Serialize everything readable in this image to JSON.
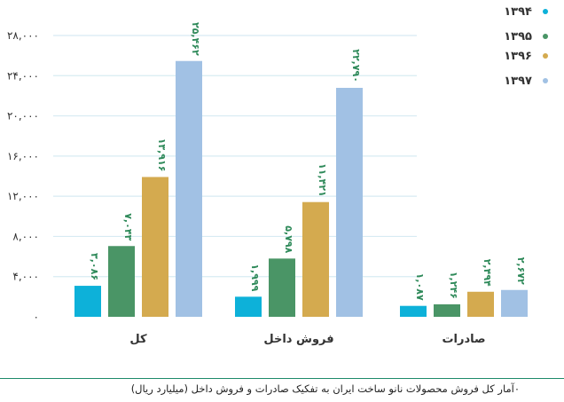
{
  "chart_data": {
    "type": "bar",
    "categories": [
      "کل",
      "فروش داخل",
      "صادرات"
    ],
    "series": [
      {
        "name": "۱۳۹۴",
        "color": "#0db1d9",
        "values": [
          3086,
          1999,
          1087
        ],
        "labels": [
          "۳,۰۸۶",
          "۱,۹۹۹",
          "۱,۰۸۷"
        ]
      },
      {
        "name": "۱۳۹۵",
        "color": "#4a9566",
        "values": [
          7043,
          5798,
          1246
        ],
        "labels": [
          "۷,۰۴۳",
          "۵,۷۹۸",
          "۱,۲۴۶"
        ]
      },
      {
        "name": "۱۳۹۶",
        "color": "#d4aa4f",
        "values": [
          13916,
          11421,
          2494
        ],
        "labels": [
          "۱۳,۹۱۶",
          "۱۱,۴۲۱",
          "۲,۴۹۴"
        ]
      },
      {
        "name": "۱۳۹۷",
        "color": "#a1c1e4",
        "values": [
          25462,
          22790,
          2672
        ],
        "labels": [
          "۲۵,۴۶۲",
          "۲۲,۷۹۰",
          "۲,۶۷۲"
        ]
      }
    ],
    "yticks": [
      0,
      4000,
      8000,
      12000,
      16000,
      20000,
      24000,
      28000
    ],
    "ytick_labels": [
      "۰",
      "۴,۰۰۰",
      "۸,۰۰۰",
      "۱۲,۰۰۰",
      "۱۶,۰۰۰",
      "۲۰,۰۰۰",
      "۲۴,۰۰۰",
      "۲۸,۰۰۰"
    ],
    "ylim": [
      0,
      28000
    ],
    "grid": true,
    "legend_position": "top-right",
    "label_color": "#2f8a5a",
    "grid_color": "#d7ebf3"
  },
  "caption": "۰آمار کل فروش محصولات نانو ساخت ایران به تفکیک صادرات و فروش داخل (میلیارد ریال)"
}
